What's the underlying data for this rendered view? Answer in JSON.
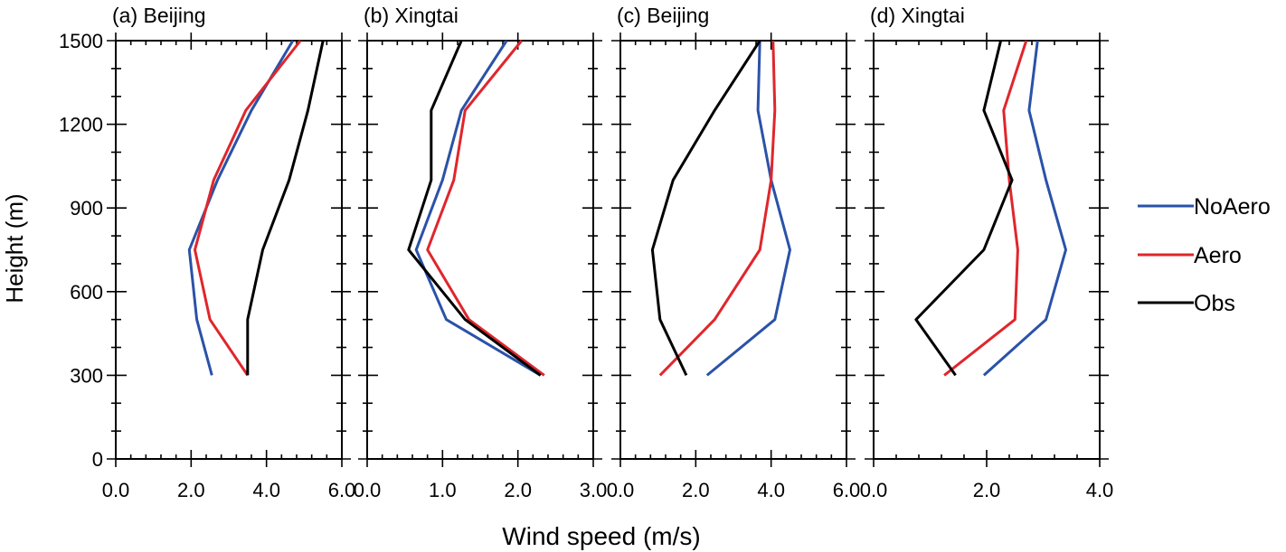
{
  "figure": {
    "ylabel": "Height (m)",
    "xlabel": "Wind speed (m/s)"
  },
  "legend": {
    "placement": "right",
    "entries": [
      {
        "label": "NoAero",
        "color": "#2a52a8"
      },
      {
        "label": "Aero",
        "color": "#e0262c"
      },
      {
        "label": "Obs",
        "color": "#000000"
      }
    ]
  },
  "chart_data": [
    {
      "type": "line",
      "title": "(a) Beijing",
      "xlim": [
        0,
        6
      ],
      "xticks": [
        "0.0",
        "2.0",
        "4.0",
        "6.0"
      ],
      "ylim": [
        0,
        1500
      ],
      "yticks": [
        "0",
        "300",
        "600",
        "900",
        "1200",
        "1500"
      ],
      "y": [
        300,
        500,
        750,
        1000,
        1250,
        1500
      ],
      "series": [
        {
          "name": "NoAero",
          "color": "#2a52a8",
          "values": [
            2.55,
            2.15,
            1.95,
            2.7,
            3.6,
            4.7
          ]
        },
        {
          "name": "Aero",
          "color": "#e0262c",
          "values": [
            3.5,
            2.5,
            2.1,
            2.6,
            3.45,
            4.9
          ]
        },
        {
          "name": "Obs",
          "color": "#000000",
          "values": [
            3.5,
            3.5,
            3.9,
            4.6,
            5.1,
            5.5
          ]
        }
      ]
    },
    {
      "type": "line",
      "title": "(b) Xingtai",
      "xlim": [
        0,
        3
      ],
      "xticks": [
        "0.0",
        "1.0",
        "2.0",
        "3.0"
      ],
      "ylim": [
        0,
        1500
      ],
      "yticks": [
        "0",
        "300",
        "600",
        "900",
        "1200",
        "1500"
      ],
      "y": [
        300,
        500,
        750,
        1000,
        1250,
        1500
      ],
      "series": [
        {
          "name": "NoAero",
          "color": "#2a52a8",
          "values": [
            2.3,
            1.05,
            0.65,
            1.0,
            1.25,
            1.85
          ]
        },
        {
          "name": "Aero",
          "color": "#e0262c",
          "values": [
            2.35,
            1.35,
            0.8,
            1.15,
            1.3,
            2.05
          ]
        },
        {
          "name": "Obs",
          "color": "#000000",
          "values": [
            2.3,
            1.3,
            0.55,
            0.85,
            0.85,
            1.25
          ]
        }
      ]
    },
    {
      "type": "line",
      "title": "(c) Beijing",
      "xlim": [
        0,
        6
      ],
      "xticks": [
        "0.0",
        "2.0",
        "4.0",
        "6.0"
      ],
      "ylim": [
        0,
        1500
      ],
      "yticks": [
        "0",
        "300",
        "600",
        "900",
        "1200",
        "1500"
      ],
      "y": [
        300,
        500,
        750,
        1000,
        1250,
        1500
      ],
      "series": [
        {
          "name": "NoAero",
          "color": "#2a52a8",
          "values": [
            2.3,
            4.1,
            4.5,
            4.0,
            3.65,
            3.7
          ]
        },
        {
          "name": "Aero",
          "color": "#e0262c",
          "values": [
            1.05,
            2.5,
            3.7,
            4.0,
            4.1,
            4.05
          ]
        },
        {
          "name": "Obs",
          "color": "#000000",
          "values": [
            1.75,
            1.05,
            0.85,
            1.4,
            2.5,
            3.7
          ]
        }
      ]
    },
    {
      "type": "line",
      "title": "(d) Xingtai",
      "xlim": [
        0,
        4
      ],
      "xticks": [
        "0.0",
        "2.0",
        "4.0"
      ],
      "ylim": [
        0,
        1500
      ],
      "yticks": [
        "0",
        "300",
        "600",
        "900",
        "1200",
        "1500"
      ],
      "y": [
        300,
        500,
        750,
        1000,
        1250,
        1500
      ],
      "series": [
        {
          "name": "NoAero",
          "color": "#2a52a8",
          "values": [
            1.95,
            3.05,
            3.4,
            3.05,
            2.75,
            2.9
          ]
        },
        {
          "name": "Aero",
          "color": "#e0262c",
          "values": [
            1.25,
            2.5,
            2.55,
            2.4,
            2.3,
            2.7
          ]
        },
        {
          "name": "Obs",
          "color": "#000000",
          "values": [
            1.45,
            0.75,
            1.95,
            2.45,
            1.95,
            2.25
          ]
        }
      ]
    }
  ]
}
